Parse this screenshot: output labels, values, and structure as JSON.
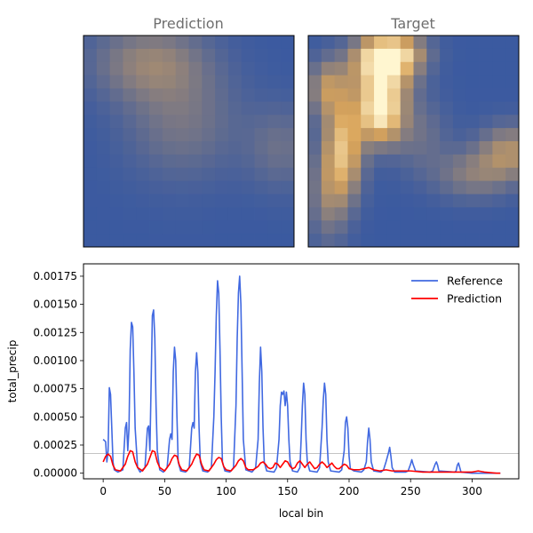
{
  "panels": {
    "left_title": "Prediction",
    "right_title": "Target"
  },
  "heatmaps": {
    "type": "heatmap",
    "grid_size": 16,
    "colormap": [
      "#3b5aa0",
      "#d9a45a",
      "#fff6d0"
    ],
    "prediction_hotspots": [
      {
        "cx": 4.5,
        "cy": 1.5,
        "sx": 3.0,
        "sy": 2.0,
        "v": 0.32
      },
      {
        "cx": 7.0,
        "cy": 6.0,
        "sx": 3.0,
        "sy": 3.0,
        "v": 0.22
      },
      {
        "cx": 14.5,
        "cy": 8.0,
        "sx": 1.8,
        "sy": 2.2,
        "v": 0.18
      }
    ],
    "target_hotspots": [
      {
        "cx": 5.0,
        "cy": 5.2,
        "sx": 1.2,
        "sy": 1.6,
        "v": 1.0
      },
      {
        "cx": 5.2,
        "cy": 1.8,
        "sx": 1.6,
        "sy": 1.4,
        "v": 0.9
      },
      {
        "cx": 6.0,
        "cy": 0.7,
        "sx": 1.6,
        "sy": 0.9,
        "v": 0.55
      },
      {
        "cx": 2.2,
        "cy": 8.0,
        "sx": 1.0,
        "sy": 2.6,
        "v": 0.7
      },
      {
        "cx": 1.0,
        "cy": 3.5,
        "sx": 1.0,
        "sy": 1.5,
        "v": 0.45
      },
      {
        "cx": 1.0,
        "cy": 11.5,
        "sx": 1.0,
        "sy": 2.5,
        "v": 0.3
      },
      {
        "cx": 14.8,
        "cy": 8.3,
        "sx": 1.6,
        "sy": 1.4,
        "v": 0.42
      },
      {
        "cx": 12.0,
        "cy": 10.0,
        "sx": 2.0,
        "sy": 1.3,
        "v": 0.28
      },
      {
        "cx": 8.0,
        "cy": 7.0,
        "sx": 1.5,
        "sy": 2.0,
        "v": 0.18
      }
    ]
  },
  "chart_data": {
    "type": "line",
    "xlabel": "local bin",
    "ylabel": "total_precip",
    "xlim": [
      -16,
      338
    ],
    "ylim": [
      -5e-05,
      0.00186
    ],
    "xticks": [
      0,
      50,
      100,
      150,
      200,
      250,
      300
    ],
    "yticks": [
      0.0,
      0.00025,
      0.0005,
      0.00075,
      0.001,
      0.00125,
      0.0015,
      0.00175
    ],
    "ytick_labels": [
      "0.00000",
      "0.00025",
      "0.00050",
      "0.00075",
      "0.00100",
      "0.00125",
      "0.00150",
      "0.00175"
    ],
    "hline": 0.000175,
    "legend_position": "upper right",
    "series": [
      {
        "name": "Reference",
        "color": "#4169e1",
        "points": [
          [
            0,
            0.0003
          ],
          [
            2,
            0.00028
          ],
          [
            3,
            0.0001
          ],
          [
            4,
            0.0002
          ],
          [
            5,
            0.00076
          ],
          [
            6,
            0.0007
          ],
          [
            7,
            0.0004
          ],
          [
            8,
            0.0001
          ],
          [
            9,
            3e-05
          ],
          [
            12,
            1e-05
          ],
          [
            16,
            3e-05
          ],
          [
            18,
            0.0004
          ],
          [
            19,
            0.00045
          ],
          [
            20,
            0.0002
          ],
          [
            21,
            0.0004
          ],
          [
            22,
            0.0011
          ],
          [
            23,
            0.00134
          ],
          [
            24,
            0.0013
          ],
          [
            25,
            0.0009
          ],
          [
            26,
            0.0004
          ],
          [
            28,
            5e-05
          ],
          [
            30,
            1e-05
          ],
          [
            34,
            5e-05
          ],
          [
            36,
            0.0004
          ],
          [
            37,
            0.00042
          ],
          [
            38,
            0.0002
          ],
          [
            39,
            0.0008
          ],
          [
            40,
            0.0014
          ],
          [
            41,
            0.00145
          ],
          [
            42,
            0.0012
          ],
          [
            43,
            0.0006
          ],
          [
            44,
            0.0002
          ],
          [
            46,
            3e-05
          ],
          [
            49,
            1e-05
          ],
          [
            52,
            5e-05
          ],
          [
            54,
            0.0003
          ],
          [
            55,
            0.00035
          ],
          [
            56,
            0.0003
          ],
          [
            57,
            0.0009
          ],
          [
            58,
            0.00112
          ],
          [
            59,
            0.001
          ],
          [
            60,
            0.0005
          ],
          [
            61,
            0.0001
          ],
          [
            63,
            2e-05
          ],
          [
            67,
            1e-05
          ],
          [
            70,
            5e-05
          ],
          [
            72,
            0.0004
          ],
          [
            73,
            0.00045
          ],
          [
            74,
            0.0004
          ],
          [
            75,
            0.0009
          ],
          [
            76,
            0.00107
          ],
          [
            77,
            0.0009
          ],
          [
            78,
            0.0004
          ],
          [
            79,
            0.0001
          ],
          [
            81,
            2e-05
          ],
          [
            85,
            1e-05
          ],
          [
            88,
            5e-05
          ],
          [
            90,
            0.0005
          ],
          [
            91,
            0.0009
          ],
          [
            92,
            0.0014
          ],
          [
            93,
            0.00171
          ],
          [
            94,
            0.0016
          ],
          [
            95,
            0.0011
          ],
          [
            96,
            0.0005
          ],
          [
            97,
            0.0001
          ],
          [
            99,
            2e-05
          ],
          [
            103,
            1e-05
          ],
          [
            106,
            5e-05
          ],
          [
            108,
            0.0006
          ],
          [
            109,
            0.0012
          ],
          [
            110,
            0.0016
          ],
          [
            111,
            0.00175
          ],
          [
            112,
            0.0015
          ],
          [
            113,
            0.0009
          ],
          [
            114,
            0.0003
          ],
          [
            116,
            3e-05
          ],
          [
            121,
            1e-05
          ],
          [
            124,
            5e-05
          ],
          [
            126,
            0.0003
          ],
          [
            127,
            0.0008
          ],
          [
            128,
            0.00112
          ],
          [
            129,
            0.0009
          ],
          [
            130,
            0.0004
          ],
          [
            131,
            0.0001
          ],
          [
            133,
            2e-05
          ],
          [
            139,
            1e-05
          ],
          [
            141,
            5e-05
          ],
          [
            143,
            0.0003
          ],
          [
            144,
            0.0006
          ],
          [
            145,
            0.00072
          ],
          [
            146,
            0.0007
          ],
          [
            147,
            0.00073
          ],
          [
            148,
            0.0006
          ],
          [
            149,
            0.00072
          ],
          [
            150,
            0.0006
          ],
          [
            151,
            0.0003
          ],
          [
            152,
            0.0001
          ],
          [
            154,
            2e-05
          ],
          [
            158,
            1e-05
          ],
          [
            160,
            5e-05
          ],
          [
            161,
            0.0003
          ],
          [
            162,
            0.0006
          ],
          [
            163,
            0.0008
          ],
          [
            164,
            0.0007
          ],
          [
            165,
            0.0003
          ],
          [
            166,
            0.0001
          ],
          [
            168,
            2e-05
          ],
          [
            174,
            1e-05
          ],
          [
            176,
            5e-05
          ],
          [
            178,
            0.0004
          ],
          [
            179,
            0.00065
          ],
          [
            180,
            0.0008
          ],
          [
            181,
            0.0007
          ],
          [
            182,
            0.0003
          ],
          [
            183,
            0.0001
          ],
          [
            185,
            2e-05
          ],
          [
            192,
            1e-05
          ],
          [
            194,
            3e-05
          ],
          [
            196,
            0.0002
          ],
          [
            197,
            0.00045
          ],
          [
            198,
            0.0005
          ],
          [
            199,
            0.0004
          ],
          [
            200,
            0.00015
          ],
          [
            201,
            4e-05
          ],
          [
            204,
            2e-05
          ],
          [
            210,
            1e-05
          ],
          [
            212,
            3e-05
          ],
          [
            214,
            0.0001
          ],
          [
            215,
            0.00028
          ],
          [
            216,
            0.0004
          ],
          [
            217,
            0.0003
          ],
          [
            218,
            0.0001
          ],
          [
            220,
            2e-05
          ],
          [
            226,
            1e-05
          ],
          [
            228,
            3e-05
          ],
          [
            230,
            0.0001
          ],
          [
            232,
            0.00018
          ],
          [
            233,
            0.00023
          ],
          [
            234,
            0.00015
          ],
          [
            235,
            5e-05
          ],
          [
            237,
            1e-05
          ],
          [
            246,
            1e-05
          ],
          [
            248,
            2e-05
          ],
          [
            250,
            8e-05
          ],
          [
            251,
            0.00012
          ],
          [
            252,
            8e-05
          ],
          [
            254,
            2e-05
          ],
          [
            266,
            1e-05
          ],
          [
            268,
            2e-05
          ],
          [
            270,
            8e-05
          ],
          [
            271,
            0.0001
          ],
          [
            272,
            7e-05
          ],
          [
            273,
            2e-05
          ],
          [
            286,
            1e-05
          ],
          [
            287,
            2e-05
          ],
          [
            288,
            7e-05
          ],
          [
            289,
            9e-05
          ],
          [
            290,
            5e-05
          ],
          [
            291,
            1e-05
          ],
          [
            300,
            0.0
          ],
          [
            305,
            0.0
          ],
          [
            310,
            0.0
          ],
          [
            320,
            0.0
          ],
          [
            323,
            0.0
          ]
        ]
      },
      {
        "name": "Prediction",
        "color": "#ff0000",
        "points": [
          [
            0,
            0.0001
          ],
          [
            2,
            0.00015
          ],
          [
            4,
            0.00017
          ],
          [
            6,
            0.00015
          ],
          [
            8,
            7e-05
          ],
          [
            10,
            3e-05
          ],
          [
            14,
            2e-05
          ],
          [
            18,
            8e-05
          ],
          [
            20,
            0.00015
          ],
          [
            22,
            0.0002
          ],
          [
            24,
            0.00019
          ],
          [
            26,
            0.0001
          ],
          [
            28,
            5e-05
          ],
          [
            32,
            2e-05
          ],
          [
            36,
            8e-05
          ],
          [
            38,
            0.00014
          ],
          [
            40,
            0.0002
          ],
          [
            42,
            0.00019
          ],
          [
            44,
            0.0001
          ],
          [
            46,
            5e-05
          ],
          [
            50,
            2e-05
          ],
          [
            54,
            8e-05
          ],
          [
            56,
            0.00013
          ],
          [
            58,
            0.00016
          ],
          [
            60,
            0.00015
          ],
          [
            62,
            7e-05
          ],
          [
            64,
            3e-05
          ],
          [
            68,
            2e-05
          ],
          [
            72,
            8e-05
          ],
          [
            74,
            0.00013
          ],
          [
            76,
            0.00017
          ],
          [
            78,
            0.00016
          ],
          [
            80,
            8e-05
          ],
          [
            82,
            3e-05
          ],
          [
            86,
            2e-05
          ],
          [
            90,
            8e-05
          ],
          [
            92,
            0.00012
          ],
          [
            94,
            0.00014
          ],
          [
            96,
            0.00013
          ],
          [
            98,
            6e-05
          ],
          [
            100,
            3e-05
          ],
          [
            104,
            2e-05
          ],
          [
            108,
            7e-05
          ],
          [
            110,
            0.00011
          ],
          [
            112,
            0.00013
          ],
          [
            114,
            0.00011
          ],
          [
            116,
            5e-05
          ],
          [
            118,
            3e-05
          ],
          [
            122,
            3e-05
          ],
          [
            126,
            6e-05
          ],
          [
            128,
            9e-05
          ],
          [
            130,
            0.0001
          ],
          [
            132,
            8e-05
          ],
          [
            134,
            5e-05
          ],
          [
            136,
            4e-05
          ],
          [
            138,
            5e-05
          ],
          [
            140,
            9e-05
          ],
          [
            142,
            8e-05
          ],
          [
            144,
            5e-05
          ],
          [
            146,
            8e-05
          ],
          [
            148,
            0.00011
          ],
          [
            150,
            0.0001
          ],
          [
            152,
            6e-05
          ],
          [
            154,
            4e-05
          ],
          [
            156,
            5e-05
          ],
          [
            158,
            9e-05
          ],
          [
            160,
            0.00011
          ],
          [
            162,
            8e-05
          ],
          [
            164,
            5e-05
          ],
          [
            166,
            8e-05
          ],
          [
            168,
            0.0001
          ],
          [
            170,
            7e-05
          ],
          [
            172,
            4e-05
          ],
          [
            174,
            5e-05
          ],
          [
            176,
            8e-05
          ],
          [
            178,
            0.0001
          ],
          [
            180,
            8e-05
          ],
          [
            182,
            5e-05
          ],
          [
            184,
            7e-05
          ],
          [
            186,
            9e-05
          ],
          [
            188,
            6e-05
          ],
          [
            190,
            4e-05
          ],
          [
            192,
            4e-05
          ],
          [
            194,
            6e-05
          ],
          [
            196,
            8e-05
          ],
          [
            198,
            7e-05
          ],
          [
            200,
            4e-05
          ],
          [
            204,
            3e-05
          ],
          [
            208,
            3e-05
          ],
          [
            212,
            4e-05
          ],
          [
            216,
            5e-05
          ],
          [
            220,
            3e-05
          ],
          [
            225,
            2e-05
          ],
          [
            230,
            3e-05
          ],
          [
            235,
            2e-05
          ],
          [
            240,
            2e-05
          ],
          [
            250,
            2e-05
          ],
          [
            260,
            1e-05
          ],
          [
            270,
            1e-05
          ],
          [
            280,
            1e-05
          ],
          [
            290,
            1e-05
          ],
          [
            300,
            1e-05
          ],
          [
            305,
            2e-05
          ],
          [
            310,
            1e-05
          ],
          [
            320,
            0.0
          ],
          [
            323,
            0.0
          ]
        ]
      }
    ]
  }
}
